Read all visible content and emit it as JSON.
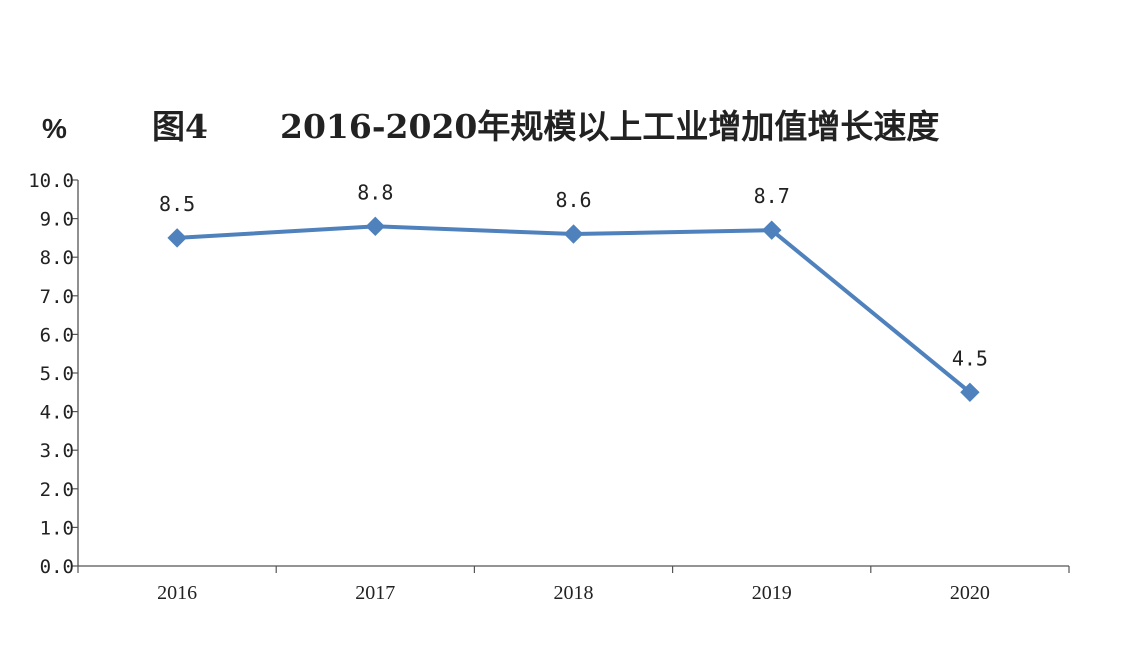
{
  "figure": {
    "unit": "%",
    "number": "图4",
    "title": "2016-2020年规模以上工业增加值增长速度"
  },
  "colors": {
    "series": "#4f81bd",
    "axis": "#555555",
    "text": "#222222",
    "background": "#ffffff"
  },
  "chart_data": {
    "type": "line",
    "title": "2016-2020年规模以上工业增加值增长速度",
    "xlabel": "",
    "ylabel": "%",
    "categories": [
      "2016",
      "2017",
      "2018",
      "2019",
      "2020"
    ],
    "series": [
      {
        "values": [
          8.5,
          8.8,
          8.6,
          8.7,
          4.5
        ],
        "labels": [
          "8.5",
          "8.8",
          "8.6",
          "8.7",
          "4.5"
        ],
        "marker": "diamond"
      }
    ],
    "y_ticks": [
      "0.0",
      "1.0",
      "2.0",
      "3.0",
      "4.0",
      "5.0",
      "6.0",
      "7.0",
      "8.0",
      "9.0",
      "10.0"
    ],
    "ylim": [
      0,
      10
    ],
    "grid": false,
    "legend": "none"
  }
}
